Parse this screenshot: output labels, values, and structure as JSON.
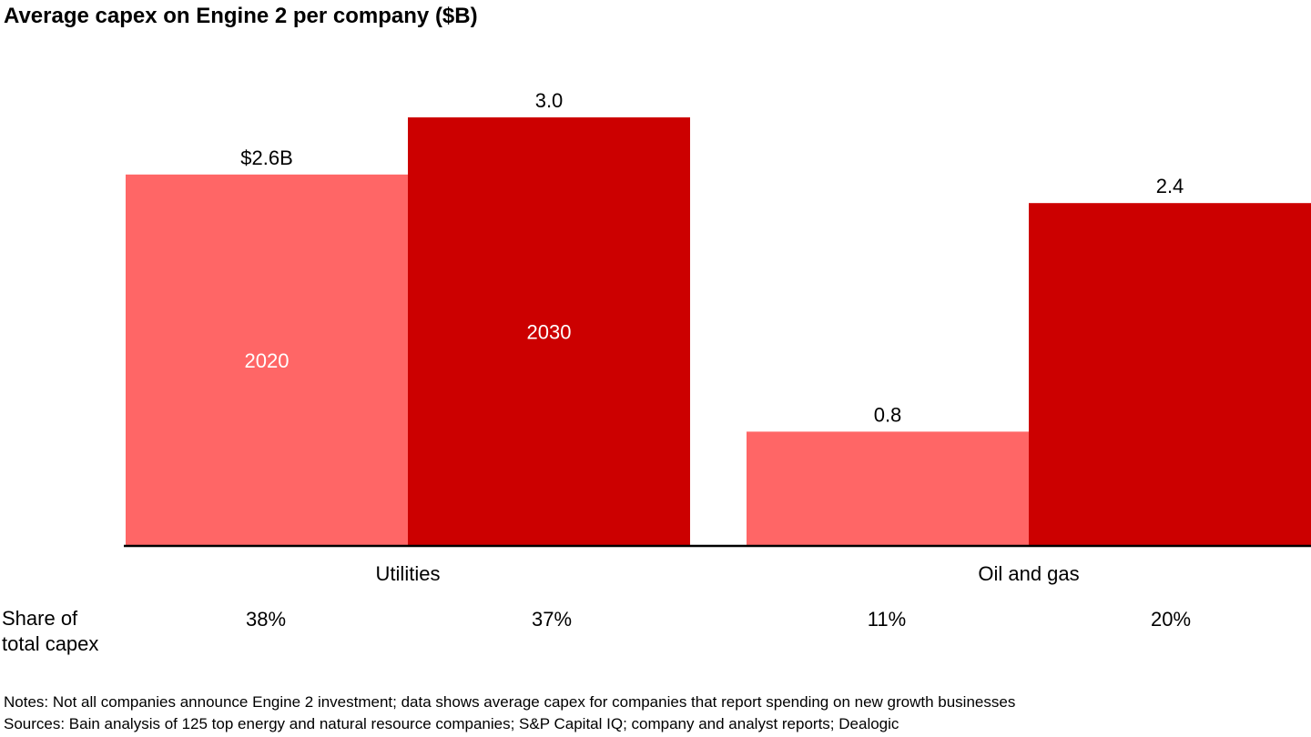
{
  "title": "Average capex on Engine 2 per company ($B)",
  "colors": {
    "series_2020": "#ff6666",
    "series_2030": "#cc0000",
    "axis": "#000000",
    "inside_label": "#ffffff"
  },
  "chart_data": {
    "type": "bar",
    "title": "Average capex on Engine 2 per company ($B)",
    "xlabel": "",
    "ylabel": "",
    "categories": [
      "Utilities",
      "Oil and gas"
    ],
    "series": [
      {
        "name": "2020",
        "values": [
          2.6,
          0.8
        ],
        "value_labels": [
          "$2.6B",
          "0.8"
        ],
        "share_of_total_capex": [
          "38%",
          "11%"
        ]
      },
      {
        "name": "2030",
        "values": [
          3.0,
          2.4
        ],
        "value_labels": [
          "3.0",
          "2.4"
        ],
        "share_of_total_capex": [
          "37%",
          "20%"
        ]
      }
    ],
    "ylim": [
      0,
      3.0
    ],
    "grid": false,
    "legend": "labels inside first group bars"
  },
  "share_row": {
    "label_line1": "Share of",
    "label_line2": "total capex"
  },
  "footer": {
    "notes": "Notes: Not all companies announce Engine 2 investment; data shows average capex for companies that report spending on new growth businesses",
    "sources": "Sources: Bain analysis of 125 top energy and natural resource companies; S&P Capital IQ; company and analyst reports; Dealogic"
  }
}
